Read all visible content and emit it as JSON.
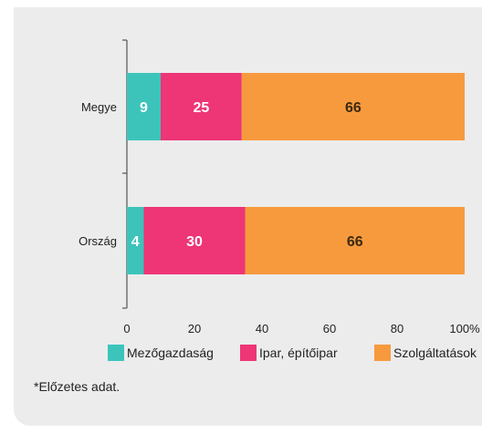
{
  "chart_data": {
    "type": "bar",
    "orientation": "horizontal",
    "stacked": true,
    "categories": [
      "Megye",
      "Ország"
    ],
    "series": [
      {
        "name": "Mezőgazdaság",
        "values": [
          9,
          4
        ],
        "color": "#3cc4bb"
      },
      {
        "name": "Ipar, építőipar",
        "values": [
          25,
          30
        ],
        "color": "#ee3576"
      },
      {
        "name": "Szolgáltatások",
        "values": [
          66,
          66
        ],
        "color": "#f79a3e"
      }
    ],
    "bar_display_shares": [
      [
        10,
        24,
        66
      ],
      [
        5,
        30,
        65
      ]
    ],
    "xlim": [
      0,
      100
    ],
    "xticks": [
      "0",
      "20",
      "40",
      "60",
      "80",
      "100%"
    ],
    "legend_position": "bottom",
    "grid": false
  },
  "footnote": "*Előzetes adat."
}
